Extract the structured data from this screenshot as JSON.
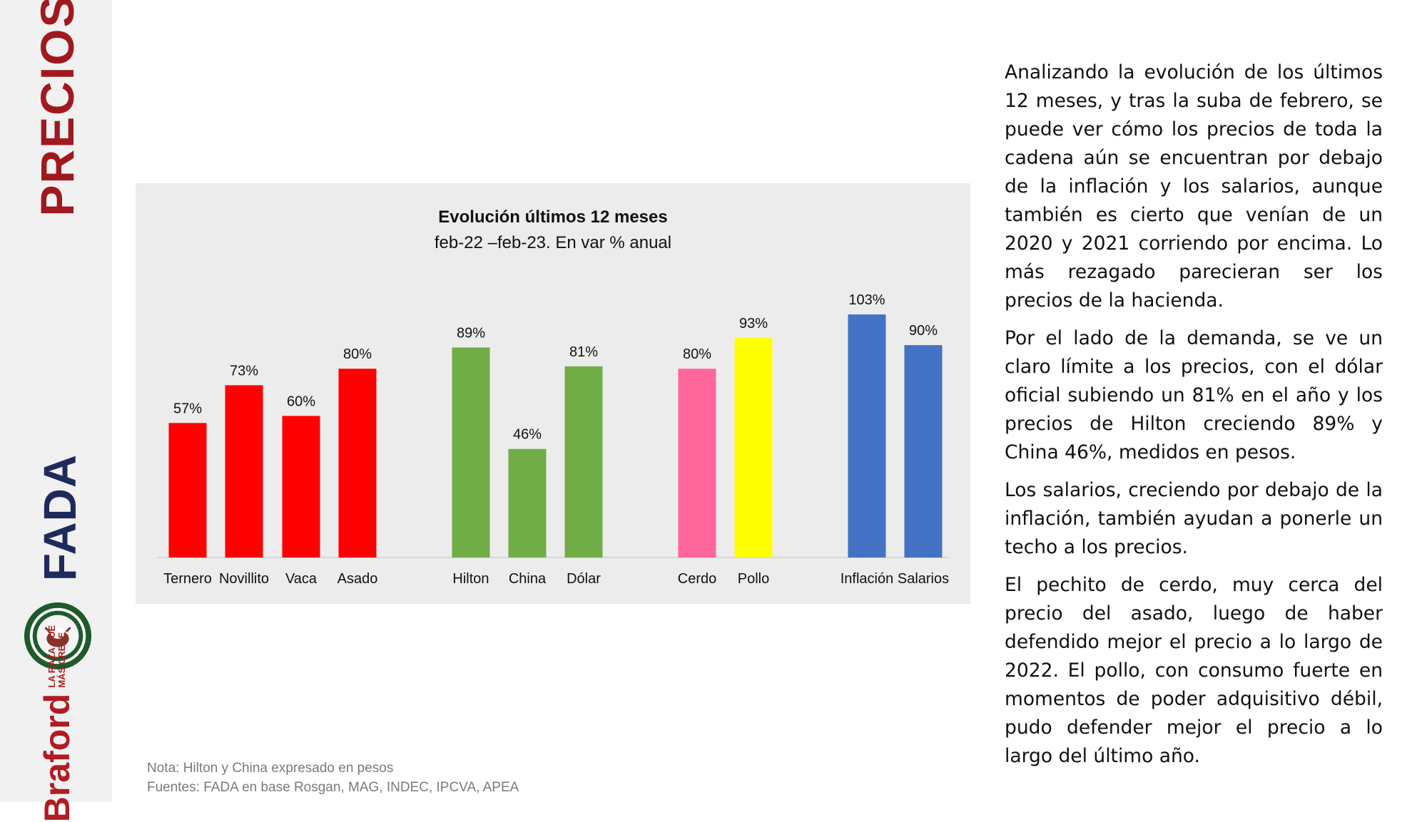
{
  "section": {
    "title": "PRECIOS"
  },
  "logos": {
    "fada": {
      "text": "FADA"
    },
    "hereford": {
      "name": "hereford-logo"
    },
    "braford": {
      "brand": "Braford",
      "tag_line1": "LA RAZA QUE",
      "tag_line2": "MÁS CRECE"
    }
  },
  "chart": {
    "title": "Evolución últimos 12 meses",
    "subtitle": "feb-22 –feb-23. En var % anual"
  },
  "chart_data": {
    "type": "bar",
    "title": "Evolución últimos 12 meses",
    "subtitle": "feb-22 –feb-23. En var % anual",
    "categories": [
      "Ternero",
      "Novillito",
      "Vaca",
      "Asado",
      "Hilton",
      "China",
      "Dólar",
      "Cerdo",
      "Pollo",
      "Inflación",
      "Salarios"
    ],
    "values": [
      57,
      73,
      60,
      80,
      89,
      46,
      81,
      80,
      93,
      103,
      90
    ],
    "labels": [
      "57%",
      "73%",
      "60%",
      "80%",
      "89%",
      "46%",
      "81%",
      "80%",
      "93%",
      "103%",
      "90%"
    ],
    "groups": [
      {
        "name": "hacienda-carne",
        "indices": [
          0,
          1,
          2,
          3
        ],
        "color": "#ff0000"
      },
      {
        "name": "exportacion",
        "indices": [
          4,
          5,
          6
        ],
        "color": "#70ad47"
      },
      {
        "name": "sustitutos",
        "indices": [
          7,
          8
        ],
        "colors": [
          "#ff6699",
          "#ffff00"
        ]
      },
      {
        "name": "macro",
        "indices": [
          9,
          10
        ],
        "color": "#4472c4"
      }
    ],
    "colors": [
      "#ff0000",
      "#ff0000",
      "#ff0000",
      "#ff0000",
      "#70ad47",
      "#70ad47",
      "#70ad47",
      "#ff6699",
      "#ffff00",
      "#4472c4",
      "#4472c4"
    ],
    "ylim": [
      0,
      110
    ],
    "grid": false,
    "legend": "none"
  },
  "footnotes": {
    "nota": "Nota: Hilton y China expresado en pesos",
    "fuentes": "Fuentes: FADA en base Rosgan, MAG, INDEC, IPCVA, APEA"
  },
  "body": {
    "paragraphs": [
      "Analizando la evolución de los últimos 12 meses, y tras la suba de febrero, se puede ver cómo los precios de toda la cadena aún se encuentran por debajo de la inflación y los salarios, aunque también es cierto que venían de un 2020 y 2021 corriendo por encima. Lo más rezagado parecieran ser los precios de la hacienda.",
      "Por el lado de la demanda, se ve un claro límite a los precios, con el dólar oficial subiendo un 81% en el año y los precios de Hilton creciendo 89% y China 46%, medidos en pesos.",
      "Los salarios, creciendo por debajo de la inflación, también ayudan a ponerle un techo a los precios.",
      "El pechito de cerdo, muy cerca del precio del asado, luego de haber defendido mejor el precio a lo largo de 2022. El pollo, con consumo fuerte en momentos de poder adquisitivo débil, pudo defender mejor el precio a lo largo del último año."
    ]
  }
}
